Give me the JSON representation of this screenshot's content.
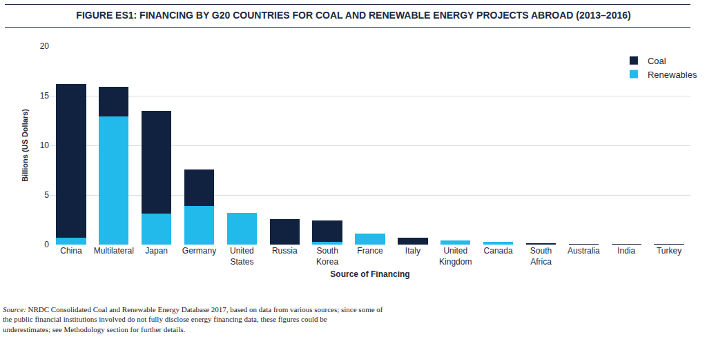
{
  "chart_data": {
    "type": "bar",
    "stacked": true,
    "title": "FIGURE ES1: FINANCING BY G20 COUNTRIES FOR COAL AND RENEWABLE ENERGY PROJECTS ABROAD (2013–2016)",
    "x_label": "Source of Financing",
    "y_label": "Billions (US Dollars)",
    "categories": [
      "China",
      "Multilateral",
      "Japan",
      "Germany",
      "United States",
      "Russia",
      "South Korea",
      "France",
      "Italy",
      "United Kingdom",
      "Canada",
      "South Africa",
      "Australia",
      "India",
      "Turkey"
    ],
    "series": [
      {
        "name": "Renewables",
        "color": "#22b9eb",
        "values": [
          0.7,
          12.9,
          3.1,
          3.9,
          3.2,
          0,
          0.3,
          1.1,
          0,
          0.4,
          0.3,
          0,
          0,
          0,
          0
        ]
      },
      {
        "name": "Coal",
        "color": "#10223f",
        "values": [
          15.5,
          3.0,
          10.4,
          3.7,
          0,
          2.6,
          2.1,
          0,
          0.7,
          0,
          0,
          0.15,
          0.1,
          0.05,
          0.05
        ]
      }
    ],
    "ylim": [
      0,
      20
    ],
    "yticks": [
      0,
      5,
      10,
      15,
      20
    ],
    "grid": true,
    "legend": "upper right",
    "source_label": "Source:",
    "source": "NRDC Consolidated Coal and Renewable Energy Database 2017, based on data from various sources; since some of the public financial institutions involved do not fully disclose energy financing data, these figures could be underestimates; see Methodology section for further details."
  }
}
